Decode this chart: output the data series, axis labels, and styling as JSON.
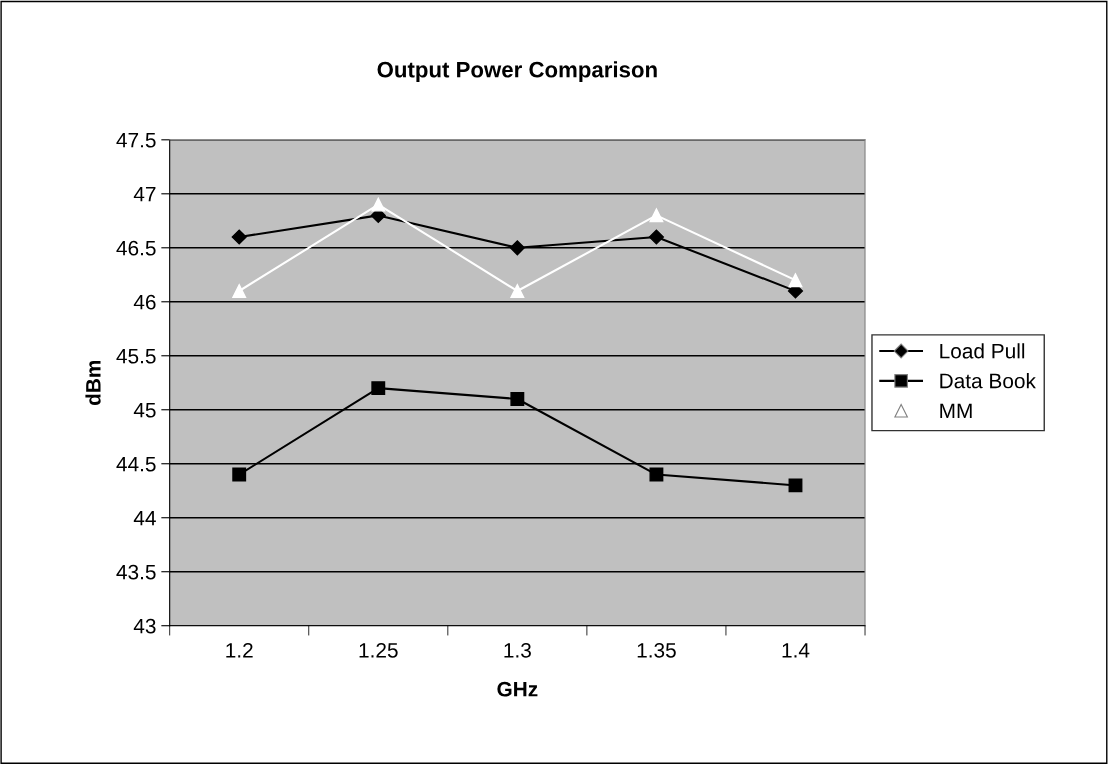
{
  "chart_data": {
    "type": "line",
    "title": "Output Power Comparison",
    "xlabel": "GHz",
    "ylabel": "dBm",
    "categories": [
      "1.2",
      "1.25",
      "1.3",
      "1.35",
      "1.4"
    ],
    "series": [
      {
        "name": "Load Pull",
        "color": "#000000",
        "marker": "diamond",
        "values": [
          46.6,
          46.8,
          46.5,
          46.6,
          46.1
        ]
      },
      {
        "name": "Data Book",
        "color": "#000000",
        "marker": "square",
        "values": [
          44.4,
          45.2,
          45.1,
          44.4,
          44.3
        ]
      },
      {
        "name": "MM",
        "color": "#ffffff",
        "marker": "triangle",
        "values": [
          46.1,
          46.9,
          46.1,
          46.8,
          46.2
        ]
      }
    ],
    "ylim": [
      43,
      47.5
    ],
    "yticks": [
      43,
      43.5,
      44,
      44.5,
      45,
      45.5,
      46,
      46.5,
      47,
      47.5
    ],
    "grid": "y",
    "legend": "right",
    "line_style": "solid"
  }
}
